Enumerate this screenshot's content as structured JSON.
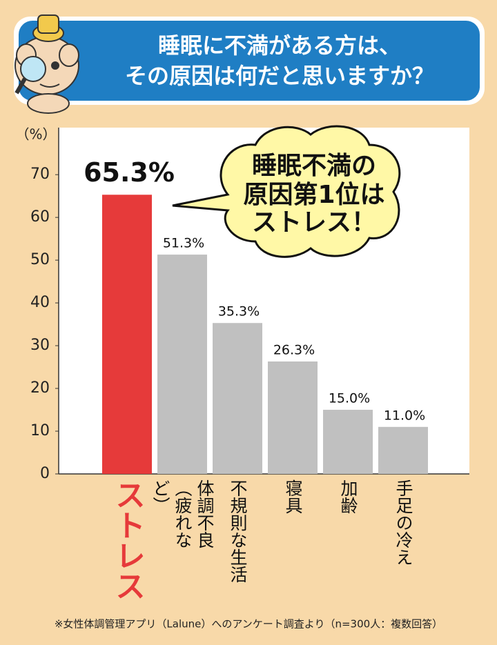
{
  "chart_data": {
    "type": "bar",
    "title_lines": [
      "睡眠に不満がある方は、",
      "その原因は何だと思いますか？"
    ],
    "y_label": "（%）",
    "categories": [
      "ストレス",
      "体調不良（疲れなど）",
      "不規則な生活",
      "寝具",
      "加齢",
      "手足の冷え"
    ],
    "values": [
      65.3,
      51.3,
      35.3,
      26.3,
      15.0,
      11.0
    ],
    "value_labels": [
      "65.3%",
      "51.3%",
      "35.3%",
      "26.3%",
      "15.0%",
      "11.0%"
    ],
    "colors": [
      "#e63a3a",
      "#c0c0c0",
      "#c0c0c0",
      "#c0c0c0",
      "#c0c0c0",
      "#c0c0c0"
    ],
    "ylim": [
      0,
      81
    ],
    "yticks": [
      0,
      10,
      20,
      30,
      40,
      50,
      60,
      70
    ],
    "annotation_lines": [
      "睡眠不満の",
      "原因第1位は",
      "ストレス！"
    ],
    "footnote": "※女性体調管理アプリ（Lalune）へのアンケート調査より（n=300人：複数回答）"
  }
}
